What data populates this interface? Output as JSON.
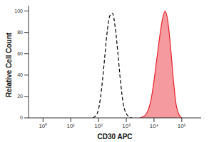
{
  "chart_data": {
    "type": "line",
    "log": "x",
    "x_label": "CD30 APC",
    "y_label": "Relative Cell Count",
    "xlim": [
      0.3,
      500000
    ],
    "xticks": [
      {
        "value": 1,
        "label": "10⁰"
      },
      {
        "value": 10,
        "label": "10¹"
      },
      {
        "value": 100,
        "label": "10²"
      },
      {
        "value": 1000,
        "label": "10³"
      },
      {
        "value": 10000,
        "label": "10⁴"
      },
      {
        "value": 100000,
        "label": "10⁵"
      }
    ],
    "ylim": [
      0,
      105
    ],
    "yticks": [
      0,
      20,
      40,
      60,
      80,
      100
    ],
    "x": [
      63,
      79,
      100,
      126,
      158,
      200,
      251,
      316,
      398,
      501,
      631,
      794,
      1000,
      1259,
      1585,
      1995,
      2512,
      3162,
      3981,
      5012,
      6310,
      7943,
      10000,
      12589,
      15849,
      19953,
      25119,
      31623,
      39811,
      50119,
      63096,
      79433,
      100000
    ],
    "series": [
      {
        "type": "line",
        "line_style": "dashed",
        "color": "#000000",
        "values": [
          0,
          2,
          8,
          25,
          50,
          78,
          95,
          98,
          85,
          60,
          32,
          12,
          4,
          1,
          0,
          null,
          null,
          null,
          null,
          null,
          null,
          null,
          null,
          null,
          null,
          null,
          null,
          null,
          null,
          null,
          null,
          null,
          null
        ]
      },
      {
        "type": "area",
        "color": "#e8202a",
        "values": [
          null,
          null,
          null,
          null,
          null,
          null,
          null,
          null,
          null,
          null,
          null,
          null,
          null,
          null,
          null,
          null,
          null,
          0,
          1,
          3,
          8,
          18,
          35,
          55,
          75,
          92,
          100,
          90,
          65,
          35,
          12,
          3,
          0
        ]
      }
    ]
  }
}
